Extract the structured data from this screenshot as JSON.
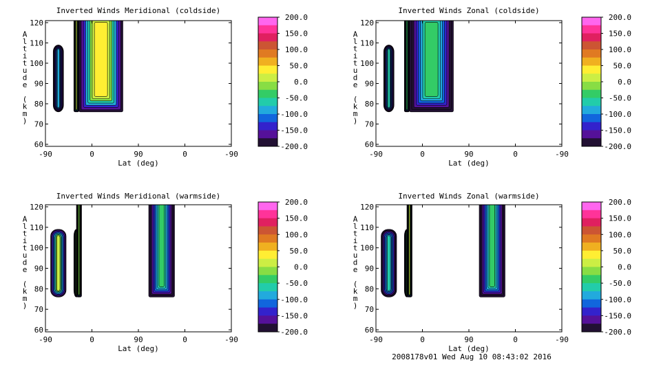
{
  "footer": "2008178v01 Wed Aug 10 08:43:02 2016",
  "chart_data": [
    {
      "type": "contour",
      "title": "Inverted Winds Meridional (coldside)",
      "xlabel": "Lat (deg)",
      "ylabel": "Altitude (km)",
      "x_ticks": [
        "-90",
        "0",
        "90",
        "0",
        "-90"
      ],
      "y_ticks": [
        60,
        70,
        80,
        90,
        100,
        110,
        120
      ],
      "ylim": [
        59,
        121
      ],
      "grid": false,
      "colorbar": {
        "levels": [
          "200.0",
          "150.0",
          "100.0",
          "50.0",
          "0.0",
          "-50.0",
          "-100.0",
          "-150.0",
          "-200.0"
        ],
        "range": [
          -200,
          200
        ]
      },
      "data_regions": [
        {
          "x": [
            -75,
            -55
          ],
          "alt": [
            76,
            109
          ],
          "shape": "rounded",
          "core_value": -80
        },
        {
          "x": [
            -35,
            -25
          ],
          "alt": [
            76,
            121
          ],
          "shape": "open-top",
          "core_value": 20
        },
        {
          "x": [
            -25,
            60
          ],
          "alt": [
            76,
            121
          ],
          "shape": "open-top",
          "core_value": 50
        }
      ]
    },
    {
      "type": "contour",
      "title": "Inverted Winds Zonal (coldside)",
      "xlabel": "Lat (deg)",
      "ylabel": "Altitude (km)",
      "x_ticks": [
        "-90",
        "0",
        "90",
        "0",
        "-90"
      ],
      "y_ticks": [
        60,
        70,
        80,
        90,
        100,
        110,
        120
      ],
      "ylim": [
        59,
        121
      ],
      "grid": false,
      "colorbar": {
        "levels": [
          "200.0",
          "150.0",
          "100.0",
          "50.0",
          "0.0",
          "-50.0",
          "-100.0",
          "-150.0",
          "-200.0"
        ],
        "range": [
          -200,
          200
        ]
      },
      "data_regions": [
        {
          "x": [
            -75,
            -55
          ],
          "alt": [
            76,
            109
          ],
          "shape": "rounded",
          "core_value": -60
        },
        {
          "x": [
            -35,
            -25
          ],
          "alt": [
            76,
            121
          ],
          "shape": "open-top",
          "core_value": -30
        },
        {
          "x": [
            -25,
            60
          ],
          "alt": [
            76,
            121
          ],
          "shape": "open-top",
          "core_value": -40
        }
      ]
    },
    {
      "type": "contour",
      "title": "Inverted Winds Meridional (warmside)",
      "xlabel": "Lat (deg)",
      "ylabel": "Altitude (km)",
      "x_ticks": [
        "-90",
        "0",
        "90",
        "0",
        "-90"
      ],
      "y_ticks": [
        60,
        70,
        80,
        90,
        100,
        110,
        120
      ],
      "ylim": [
        59,
        121
      ],
      "grid": false,
      "colorbar": {
        "levels": [
          "200.0",
          "150.0",
          "100.0",
          "50.0",
          "0.0",
          "-50.0",
          "-100.0",
          "-150.0",
          "-200.0"
        ],
        "range": [
          -200,
          200
        ]
      },
      "data_regions": [
        {
          "x": [
            -80,
            -50
          ],
          "alt": [
            76,
            109
          ],
          "shape": "rounded",
          "core_value": 10
        },
        {
          "x": [
            -35,
            -25
          ],
          "alt": [
            76,
            109
          ],
          "shape": "rounded",
          "core_value": -20
        },
        {
          "x": [
            -30,
            -20
          ],
          "alt": [
            76,
            121
          ],
          "shape": "open-top",
          "core_value": 0
        },
        {
          "x": [
            110,
            20
          ],
          "alt": [
            76,
            121
          ],
          "shape": "open-top",
          "core_value": -40
        }
      ]
    },
    {
      "type": "contour",
      "title": "Inverted Winds Zonal (warmside)",
      "xlabel": "Lat (deg)",
      "ylabel": "Altitude (km)",
      "x_ticks": [
        "-90",
        "0",
        "90",
        "0",
        "-90"
      ],
      "y_ticks": [
        60,
        70,
        80,
        90,
        100,
        110,
        120
      ],
      "ylim": [
        59,
        121
      ],
      "grid": false,
      "colorbar": {
        "levels": [
          "200.0",
          "150.0",
          "100.0",
          "50.0",
          "0.0",
          "-50.0",
          "-100.0",
          "-150.0",
          "-200.0"
        ],
        "range": [
          -200,
          200
        ]
      },
      "data_regions": [
        {
          "x": [
            -80,
            -50
          ],
          "alt": [
            76,
            109
          ],
          "shape": "rounded",
          "core_value": -60
        },
        {
          "x": [
            -35,
            -25
          ],
          "alt": [
            76,
            109
          ],
          "shape": "rounded",
          "core_value": -40
        },
        {
          "x": [
            -30,
            -20
          ],
          "alt": [
            76,
            121
          ],
          "shape": "open-top",
          "core_value": 10
        },
        {
          "x": [
            110,
            20
          ],
          "alt": [
            76,
            121
          ],
          "shape": "open-top",
          "core_value": -30
        }
      ]
    }
  ]
}
